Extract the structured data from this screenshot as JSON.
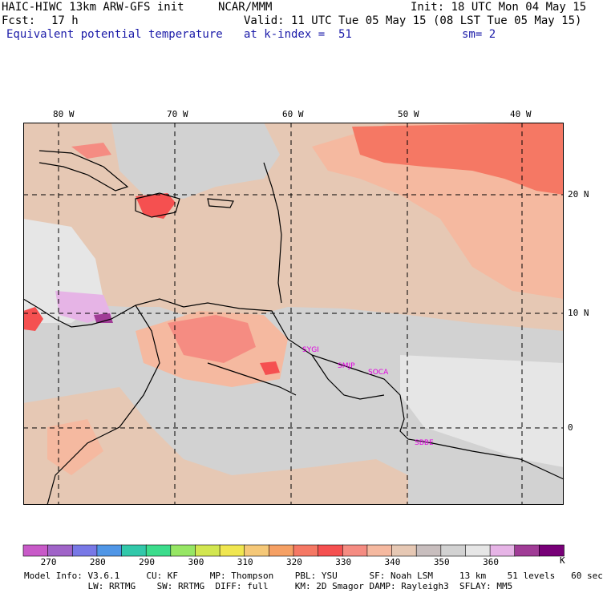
{
  "header": {
    "model": "HAIC-HIWC 13km ARW-GFS init",
    "center": "NCAR/MMM",
    "init": "Init: 18 UTC Mon 04 May 15",
    "fcst_label": "Fcst:",
    "fcst_value": "17 h",
    "valid": "Valid: 11 UTC Tue 05 May 15 (08 LST Tue 05 May 15)",
    "field": "Equivalent potential temperature",
    "level": "at k-index =  51",
    "smooth": "sm= 2"
  },
  "map": {
    "lon_labels": [
      "80 W",
      "70 W",
      "60 W",
      "50 W",
      "40 W"
    ],
    "lat_labels": [
      "20 N",
      "10 N",
      "0"
    ],
    "stations": [
      {
        "name": "SYGI",
        "lon": -59.3,
        "lat": 6.6
      },
      {
        "name": "SMJP",
        "lon": -55.2,
        "lat": 5.5
      },
      {
        "name": "SOCA",
        "lon": -52.4,
        "lat": 4.8
      },
      {
        "name": "SBBE",
        "lon": -48.5,
        "lat": -1.4
      }
    ]
  },
  "colorbar": {
    "unit": "K",
    "tick_labels": [
      "270",
      "280",
      "290",
      "300",
      "310",
      "320",
      "330",
      "340",
      "350",
      "360"
    ],
    "colors": [
      "#c85ac8",
      "#a064c8",
      "#7878e6",
      "#5096e6",
      "#32c8aa",
      "#3cdc8c",
      "#96e664",
      "#d2e650",
      "#f0e650",
      "#f5c878",
      "#f5a064",
      "#f57864",
      "#f55050",
      "#f58c82",
      "#f5b9a0",
      "#e6c8b4",
      "#c8bebe",
      "#d2d2d2",
      "#e6e6e6",
      "#e6b4e6",
      "#a03c96",
      "#780078"
    ]
  },
  "footer": {
    "line1": "Model Info: V3.6.1     CU: KF      MP: Thompson    PBL: YSU      SF: Noah LSM     13 km    51 levels   60 sec",
    "line2": "            LW: RRTMG    SW: RRTMG  DIFF: full     KM: 2D Smagor DAMP: Rayleigh3  SFLAY: MM5"
  }
}
